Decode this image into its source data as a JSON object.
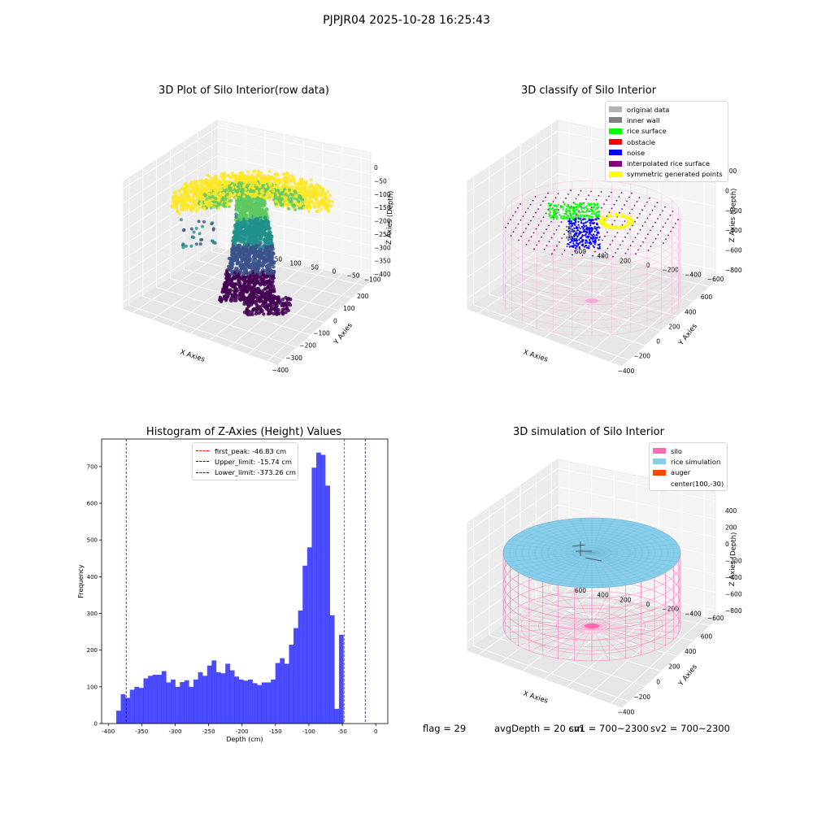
{
  "figure_title": "PJPJR04 2025-10-28 16:25:43",
  "status": {
    "flag": "flag = 29",
    "avg_depth": "avgDepth = 20 cm",
    "sv1": "sv1 = 700~2300",
    "sv2": "sv2 = 700~2300"
  },
  "chart_data": [
    {
      "type": "scatter",
      "projection": "3d",
      "title": "3D Plot of Silo Interior(row data)",
      "xlabel": "X Axies",
      "ylabel": "Y Axies",
      "zlabel": "Z Axies (Depth)",
      "x_ticks": [
        "−400",
        "−300",
        "−200",
        "−100",
        "0",
        "100",
        "200"
      ],
      "y_ticks": [
        "−100",
        "−50",
        "0",
        "50",
        "100",
        "150",
        "200",
        "250"
      ],
      "z_ticks": [
        "0",
        "−50",
        "−100",
        "−150",
        "−200",
        "−250",
        "−300",
        "−350",
        "−400"
      ],
      "xlim": [
        -450,
        250
      ],
      "ylim": [
        -120,
        270
      ],
      "zlim": [
        -420,
        10
      ],
      "colormap": "viridis (colored by depth)",
      "colormap_colors": [
        "#440154",
        "#3b528b",
        "#21918c",
        "#5ec962",
        "#fde725"
      ],
      "grid": true
    },
    {
      "type": "scatter",
      "projection": "3d",
      "title": "3D classify of Silo Interior",
      "xlabel": "X Axies",
      "ylabel": "Y Axies",
      "zlabel": "Z Axies (Depth)",
      "x_ticks": [
        "−400",
        "−200",
        "0",
        "200",
        "400",
        "600"
      ],
      "y_ticks": [
        "−600",
        "−400",
        "−200",
        "0",
        "200",
        "400",
        "600"
      ],
      "z_ticks": [
        "200",
        "0",
        "−200",
        "−400",
        "−600",
        "−800"
      ],
      "xlim": [
        -500,
        700
      ],
      "ylim": [
        -650,
        650
      ],
      "zlim": [
        -900,
        300
      ],
      "legend": [
        {
          "label": "original data",
          "color": "#b3b3b3"
        },
        {
          "label": "inner wall",
          "color": "#808080"
        },
        {
          "label": "rice surface",
          "color": "#00ff00"
        },
        {
          "label": "obstacle",
          "color": "#ff0000"
        },
        {
          "label": "noise",
          "color": "#0000ff"
        },
        {
          "label": "interpolated rice surface",
          "color": "#800080"
        },
        {
          "label": "symmetric generated points",
          "color": "#ffff00"
        }
      ],
      "legend_position": "upper right",
      "silo_wire_color": "#ff9ed3",
      "grid": true
    },
    {
      "type": "bar",
      "subtype": "histogram",
      "title": "Histogram of Z-Axies (Height) Values",
      "xlabel": "Depth (cm)",
      "ylabel": "Frequency",
      "xlim": [
        -410,
        18
      ],
      "ylim": [
        0,
        775
      ],
      "x_ticks": [
        -400,
        -350,
        -300,
        -250,
        -200,
        -150,
        -100,
        -50,
        0
      ],
      "y_ticks": [
        0,
        100,
        200,
        300,
        400,
        500,
        600,
        700
      ],
      "bar_color": "#0000ff",
      "bar_alpha": 0.7,
      "bin_width": 6.8,
      "bin_start": -388.2,
      "values": [
        35,
        80,
        70,
        92,
        100,
        97,
        123,
        130,
        133,
        133,
        143,
        112,
        120,
        100,
        113,
        118,
        100,
        120,
        140,
        130,
        158,
        172,
        140,
        137,
        163,
        145,
        128,
        120,
        117,
        120,
        110,
        105,
        112,
        112,
        120,
        165,
        178,
        163,
        215,
        260,
        308,
        430,
        480,
        697,
        738,
        732,
        648,
        295,
        40,
        242
      ],
      "vlines": [
        {
          "x": -46.83,
          "color": "#ff0000",
          "label": "first_peak: -46.83 cm"
        },
        {
          "x": -15.74,
          "color": "#0000ff",
          "label": "Upper_limit: -15.74 cm"
        },
        {
          "x": -373.26,
          "color": "#0000ff",
          "label": "Lower_limit: -373.26 cm"
        }
      ],
      "legend_position": "upper center",
      "grid": false
    },
    {
      "type": "scatter",
      "projection": "3d",
      "title": "3D simulation of Silo Interior",
      "xlabel": "X Axies",
      "ylabel": "Y Axies",
      "zlabel": "Z Axies (Depth)",
      "x_ticks": [
        "−400",
        "−200",
        "0",
        "200",
        "400",
        "600"
      ],
      "y_ticks": [
        "−600",
        "−400",
        "−200",
        "0",
        "200",
        "400",
        "600"
      ],
      "z_ticks": [
        "400",
        "200",
        "0",
        "−200",
        "−400",
        "−600",
        "−800"
      ],
      "xlim": [
        -500,
        700
      ],
      "ylim": [
        -650,
        650
      ],
      "zlim": [
        -900,
        450
      ],
      "legend": [
        {
          "label": "silo",
          "color": "#ff69b4"
        },
        {
          "label": "rice simulation",
          "color": "#87ceeb"
        },
        {
          "label": "auger",
          "color": "#ff4500"
        },
        {
          "label": "center(100,-30)",
          "color": ""
        }
      ],
      "legend_position": "upper right",
      "grid": true
    }
  ]
}
